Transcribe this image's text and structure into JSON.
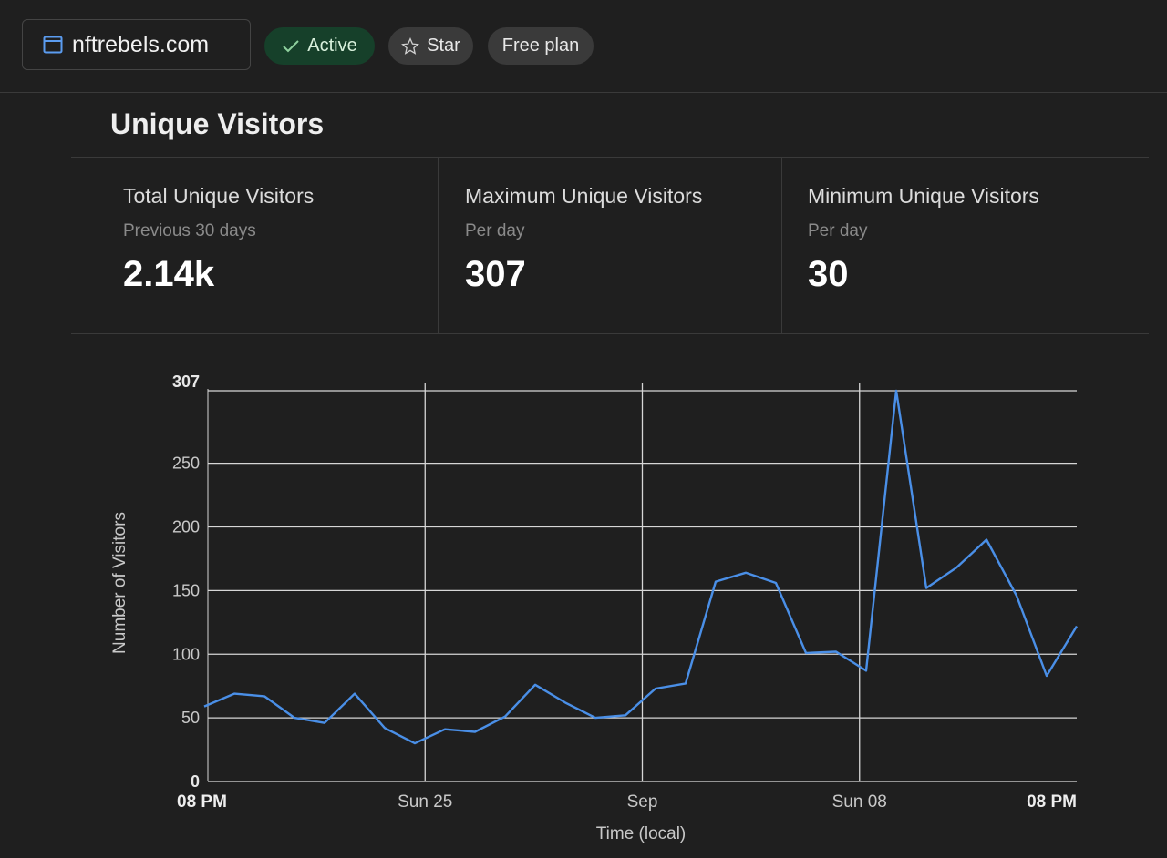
{
  "header": {
    "site_name": "nftrebels.com",
    "status_label": "Active",
    "star_label": "Star",
    "plan_label": "Free plan",
    "icons": {
      "site": "browser-window-icon",
      "status": "check-icon",
      "star": "star-outline-icon"
    }
  },
  "section": {
    "title": "Unique Visitors"
  },
  "stats": [
    {
      "label": "Total Unique Visitors",
      "sub": "Previous 30 days",
      "value": "2.14k"
    },
    {
      "label": "Maximum Unique Visitors",
      "sub": "Per day",
      "value": "307"
    },
    {
      "label": "Minimum Unique Visitors",
      "sub": "Per day",
      "value": "30"
    }
  ],
  "chart_data": {
    "type": "line",
    "xlabel": "Time (local)",
    "ylabel": "Number of Visitors",
    "ylim": [
      0,
      307
    ],
    "y_ticks": [
      0,
      50,
      100,
      150,
      200,
      250,
      307
    ],
    "y_tick_labels": [
      "0",
      "50",
      "100",
      "150",
      "200",
      "250",
      "307"
    ],
    "x_ticks": [
      {
        "label": "08 PM",
        "index": 0
      },
      {
        "label": "Sun 25",
        "index": 7.5
      },
      {
        "label": "Sep",
        "index": 15
      },
      {
        "label": "Sun 08",
        "index": 22.5
      },
      {
        "label": "08 PM",
        "index": 30
      }
    ],
    "grid": true,
    "line_color": "#4a8fe7",
    "values": [
      59,
      69,
      67,
      50,
      46,
      69,
      42,
      30,
      41,
      39,
      51,
      76,
      62,
      50,
      52,
      73,
      77,
      157,
      164,
      156,
      101,
      102,
      87,
      307,
      152,
      168,
      190,
      146,
      83,
      122
    ]
  }
}
